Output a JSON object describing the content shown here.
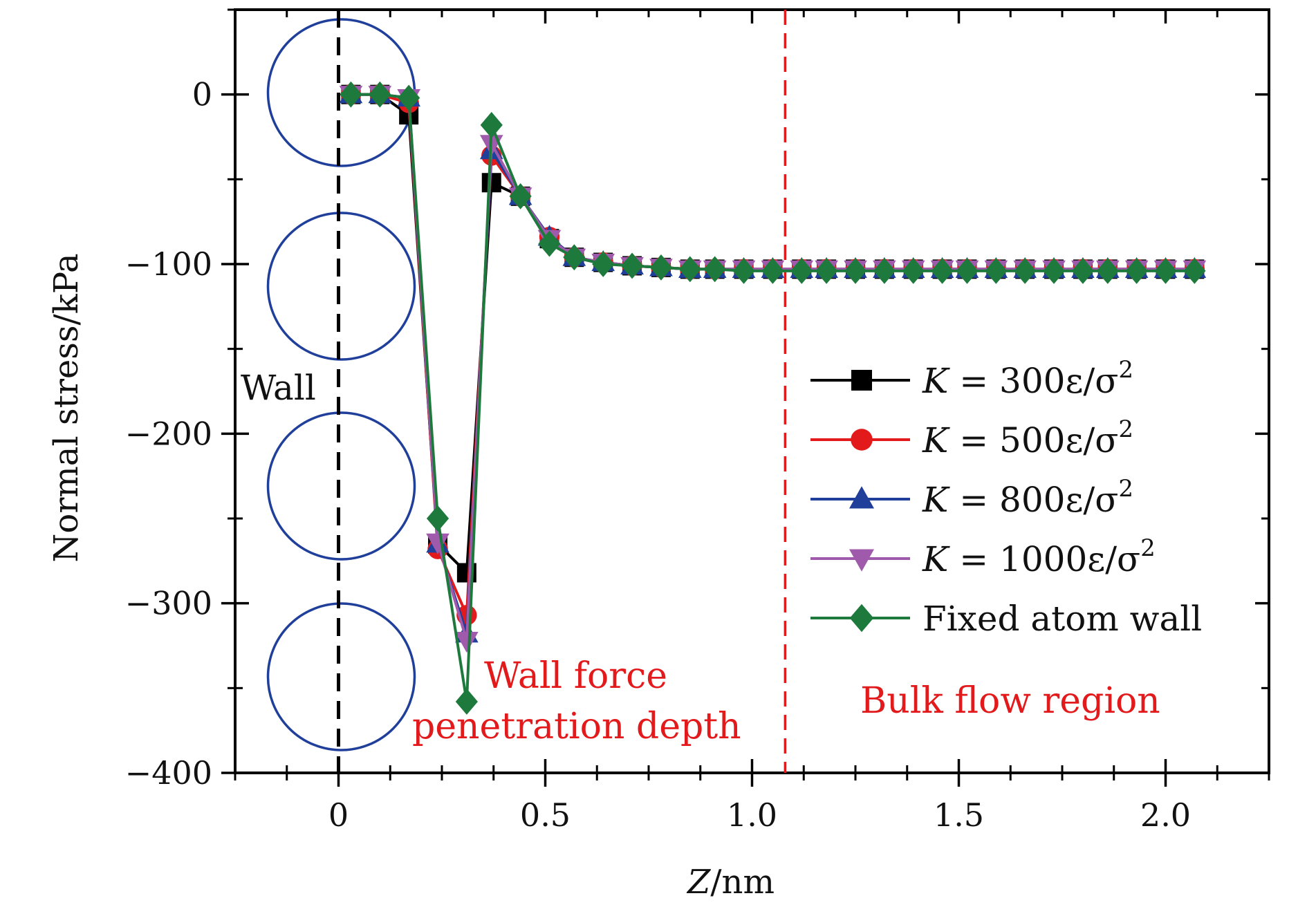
{
  "chart_data": {
    "type": "line",
    "title": "",
    "xlabel": "Z/nm",
    "ylabel": "Normal stress/kPa",
    "xlim": [
      -0.25,
      2.25
    ],
    "ylim": [
      -400,
      50
    ],
    "xticks": [
      0,
      0.5,
      1.0,
      1.5,
      2.0
    ],
    "xtick_labels": [
      "0",
      "0.5",
      "1.0",
      "1.5",
      "2.0"
    ],
    "yticks": [
      0,
      -100,
      -200,
      -300,
      -400
    ],
    "ytick_labels": [
      "0",
      "−100",
      "−200",
      "−300",
      "−400"
    ],
    "legend_position": "center-right",
    "x": [
      0.03,
      0.1,
      0.17,
      0.24,
      0.31,
      0.37,
      0.44,
      0.51,
      0.57,
      0.64,
      0.71,
      0.78,
      0.85,
      0.91,
      0.98,
      1.05,
      1.12,
      1.18,
      1.25,
      1.32,
      1.39,
      1.46,
      1.52,
      1.59,
      1.66,
      1.73,
      1.8,
      1.86,
      1.93,
      2.0,
      2.07
    ],
    "series": [
      {
        "name": "K = 300ε/σ²",
        "legend": {
          "main": "K = 300ε/σ",
          "sup": "2"
        },
        "color": "#000000",
        "marker": "square",
        "values": [
          0,
          0,
          -12,
          -265,
          -282,
          -52,
          -60,
          -85,
          -96,
          -99,
          -101,
          -102,
          -103,
          -103,
          -103,
          -103,
          -103,
          -103,
          -103,
          -103,
          -103,
          -103,
          -103,
          -103,
          -103,
          -103,
          -103,
          -103,
          -103,
          -103,
          -103
        ]
      },
      {
        "name": "K = 500ε/σ²",
        "legend": {
          "main": "K = 500ε/σ",
          "sup": "2"
        },
        "color": "#e31a1c",
        "marker": "circle",
        "values": [
          0,
          0,
          -5,
          -268,
          -307,
          -36,
          -60,
          -84,
          -96,
          -99,
          -101,
          -102,
          -103,
          -103,
          -103,
          -103,
          -103,
          -103,
          -103,
          -103,
          -103,
          -103,
          -103,
          -103,
          -103,
          -103,
          -103,
          -103,
          -103,
          -103,
          -103
        ]
      },
      {
        "name": "K = 800ε/σ²",
        "legend": {
          "main": "K = 800ε/σ",
          "sup": "2"
        },
        "color": "#1f3f9a",
        "marker": "triangle-up",
        "values": [
          0,
          0,
          -2,
          -265,
          -318,
          -33,
          -60,
          -84,
          -96,
          -99,
          -101,
          -102,
          -103,
          -103,
          -103,
          -103,
          -103,
          -103,
          -103,
          -103,
          -103,
          -103,
          -103,
          -103,
          -103,
          -103,
          -103,
          -103,
          -103,
          -103,
          -103
        ]
      },
      {
        "name": "K = 1000ε/σ²",
        "legend": {
          "main": "K = 1000ε/σ",
          "sup": "2"
        },
        "color": "#a05aab",
        "marker": "triangle-down",
        "values": [
          0,
          0,
          -2,
          -264,
          -322,
          -29,
          -60,
          -85,
          -96,
          -99,
          -101,
          -102,
          -103,
          -103,
          -103,
          -103,
          -103,
          -103,
          -103,
          -103,
          -103,
          -103,
          -103,
          -103,
          -103,
          -103,
          -103,
          -103,
          -103,
          -103,
          -103
        ]
      },
      {
        "name": "Fixed atom wall",
        "legend": {
          "main": "Fixed atom wall",
          "sup": ""
        },
        "color": "#1e7a3c",
        "marker": "diamond",
        "values": [
          0,
          0,
          -2,
          -250,
          -358,
          -18,
          -60,
          -88,
          -96,
          -100,
          -101,
          -102,
          -103,
          -103,
          -104,
          -104,
          -104,
          -104,
          -104,
          -104,
          -104,
          -104,
          -104,
          -104,
          -104,
          -104,
          -104,
          -104,
          -104,
          -104,
          -104
        ]
      }
    ],
    "annotations": [
      {
        "id": "wall",
        "text": "Wall",
        "x": 0,
        "color": "#000000",
        "style": "dashed-line"
      },
      {
        "id": "penetration_line1",
        "text": "Wall force",
        "color": "#e31a1c"
      },
      {
        "id": "penetration_line2",
        "text": "penetration depth",
        "color": "#e31a1c"
      },
      {
        "id": "bulk",
        "text": "Bulk flow region",
        "x": 1.08,
        "color": "#e31a1c",
        "style": "dashed-line"
      }
    ],
    "wall_atoms": {
      "count": 4,
      "color": "#1f3f9a",
      "shape": "circle"
    }
  }
}
